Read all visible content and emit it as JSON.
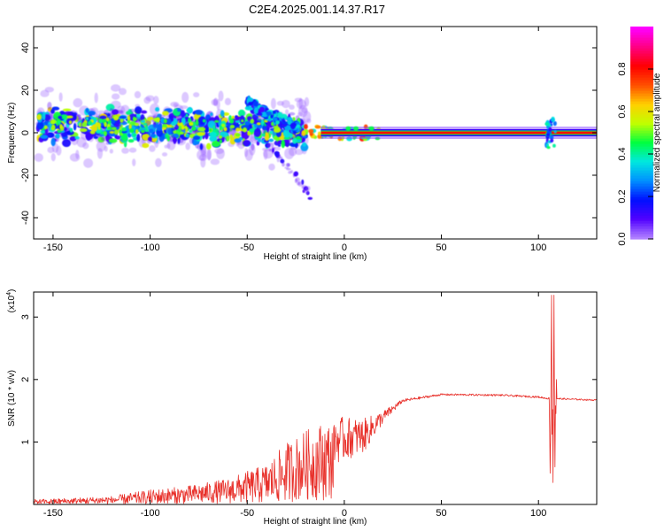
{
  "title": "C2E4.2025.001.14.37.R17",
  "chart_data": [
    {
      "type": "heatmap",
      "name": "spectrogram",
      "xlabel": "Height of straight line (km)",
      "ylabel": "Frequency (Hz)",
      "xlim": [
        -160,
        130
      ],
      "ylim": [
        -50,
        50
      ],
      "xticks": [
        -150,
        -100,
        -50,
        0,
        50,
        100
      ],
      "yticks": [
        -40,
        -20,
        0,
        20,
        40
      ],
      "colorbar": {
        "label": "Normalized spectral amplitude",
        "range": [
          0,
          1
        ],
        "ticks": [
          0.0,
          0.2,
          0.4,
          0.6,
          0.8
        ],
        "tick_labels": [
          "0.0",
          "0.2",
          "0.4",
          "0.6",
          "0.8"
        ],
        "colormap": [
          "#b080ff",
          "#5000ff",
          "#0010ff",
          "#0090ff",
          "#00e8e0",
          "#00ff40",
          "#c0ff00",
          "#ffd000",
          "#ff5000",
          "#ff0000",
          "#ff0080",
          "#ff00ff"
        ]
      },
      "features": [
        {
          "x_range": [
            -160,
            -20
          ],
          "center_freq_start": 4,
          "center_freq_end": 0,
          "spread": 12,
          "description": "scattered broadband blobs"
        },
        {
          "x_range": [
            -50,
            -25
          ],
          "center_freq_start": 14,
          "center_freq_end": 2,
          "description": "descending branch"
        },
        {
          "x_range": [
            -40,
            -17
          ],
          "center_freq_start": -4,
          "center_freq_end": -30,
          "description": "faint lower trail"
        },
        {
          "x_range": [
            -12,
            130
          ],
          "center_freq": 0,
          "amplitude": 1.0,
          "description": "narrow red line at 0 Hz"
        },
        {
          "x_range": [
            104,
            109
          ],
          "center_freq": 0,
          "spread": 8,
          "description": "vertical disturbance"
        }
      ]
    },
    {
      "type": "line",
      "name": "snr",
      "xlabel": "Height of straight line (km)",
      "ylabel": "SNR (10 * v/v)",
      "y_multiplier": "(x10",
      "y_multiplier_exp": "4",
      "y_multiplier_close": ")",
      "xlim": [
        -160,
        130
      ],
      "ylim": [
        0,
        3.4
      ],
      "xticks": [
        -150,
        -100,
        -50,
        0,
        50,
        100
      ],
      "yticks": [
        1,
        2,
        3
      ],
      "color": "#e8302a",
      "envelope": [
        {
          "x": -160,
          "base": 0.05,
          "noise": 0.05
        },
        {
          "x": -120,
          "base": 0.1,
          "noise": 0.08
        },
        {
          "x": -100,
          "base": 0.15,
          "noise": 0.15
        },
        {
          "x": -80,
          "base": 0.22,
          "noise": 0.18
        },
        {
          "x": -60,
          "base": 0.3,
          "noise": 0.25
        },
        {
          "x": -40,
          "base": 0.45,
          "noise": 0.4
        },
        {
          "x": -30,
          "base": 0.7,
          "noise": 0.6
        },
        {
          "x": -20,
          "base": 0.9,
          "noise": 0.7
        },
        {
          "x": -10,
          "base": 1.0,
          "noise": 0.8
        },
        {
          "x": 0,
          "base": 1.05,
          "noise": 0.7
        },
        {
          "x": 10,
          "base": 1.1,
          "noise": 0.55
        },
        {
          "x": 20,
          "base": 1.4,
          "noise": 0.2
        },
        {
          "x": 30,
          "base": 1.66,
          "noise": 0.05
        },
        {
          "x": 50,
          "base": 1.76,
          "noise": 0.03
        },
        {
          "x": 80,
          "base": 1.75,
          "noise": 0.03
        },
        {
          "x": 100,
          "base": 1.72,
          "noise": 0.03
        },
        {
          "x": 104,
          "base": 1.7,
          "noise": 0.03
        },
        {
          "x": 130,
          "base": 1.67,
          "noise": 0.02
        }
      ],
      "spikes": [
        {
          "x": 106.0,
          "y": 0.5
        },
        {
          "x": 106.8,
          "y": 3.35
        },
        {
          "x": 107.4,
          "y": 0.35
        },
        {
          "x": 108.0,
          "y": 3.35
        },
        {
          "x": 108.6,
          "y": 0.6
        },
        {
          "x": 109.2,
          "y": 2.0
        }
      ]
    }
  ]
}
